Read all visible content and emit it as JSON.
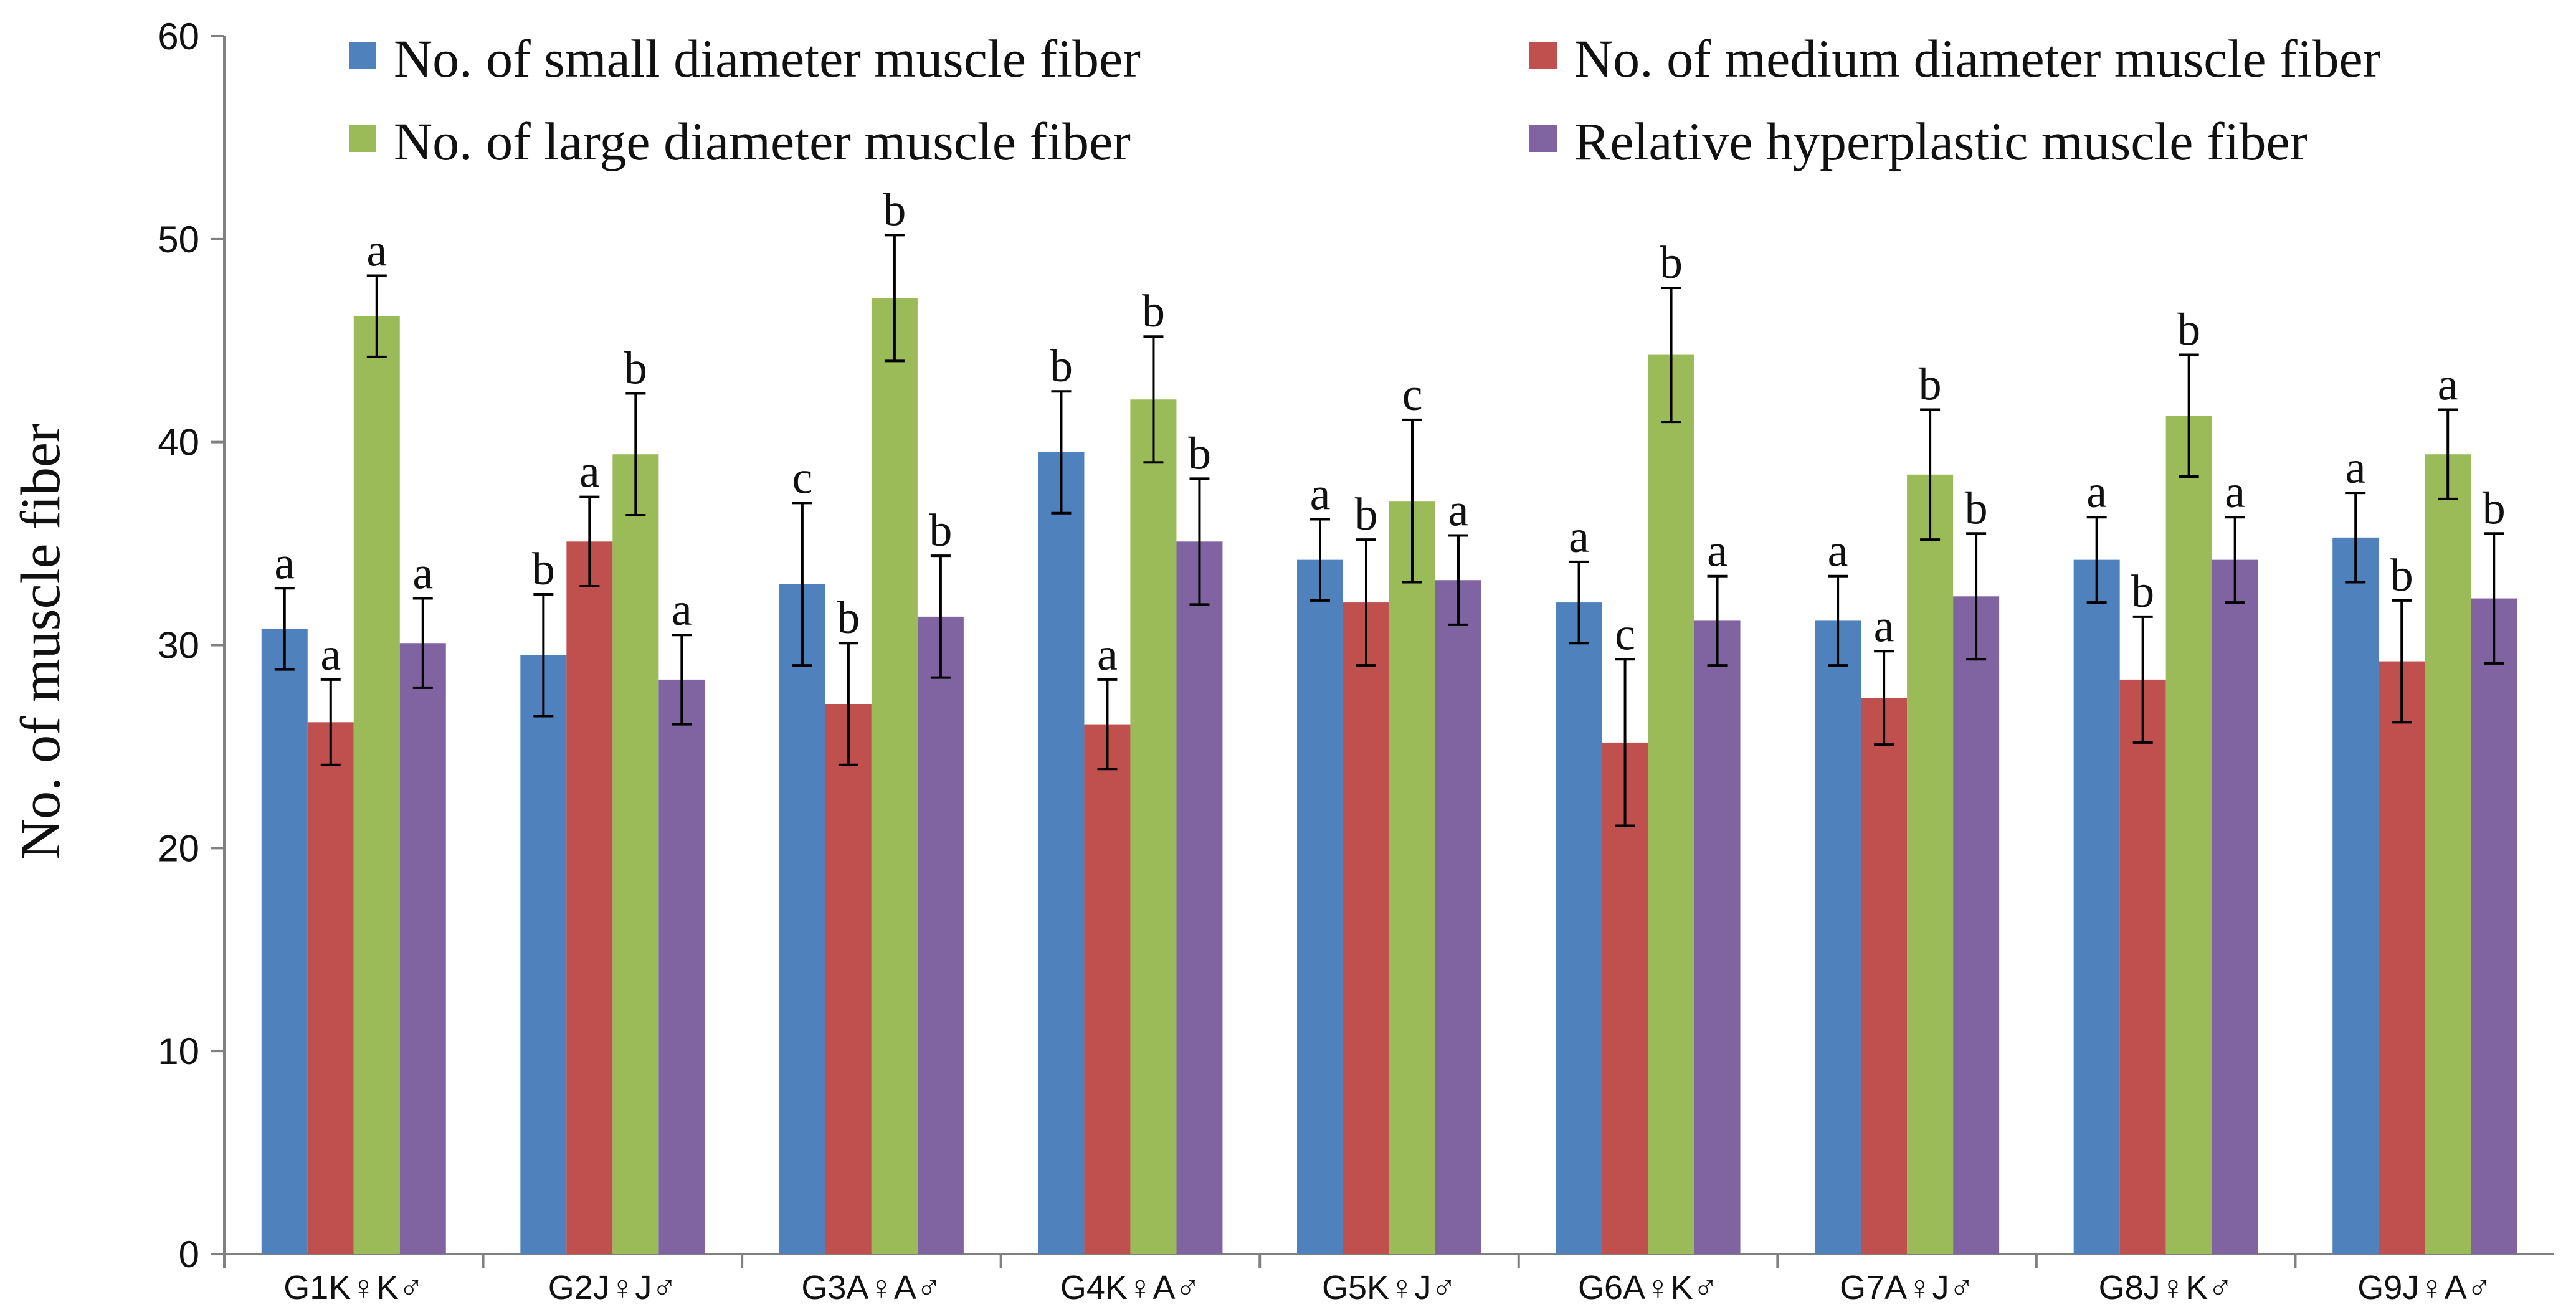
{
  "chart_data": {
    "type": "bar",
    "title": "",
    "xlabel": "",
    "ylabel": "No. of muscle fiber",
    "ylim": [
      0,
      60
    ],
    "yticks": [
      0,
      10,
      20,
      30,
      40,
      50,
      60
    ],
    "grid": false,
    "legend_position": "top",
    "categories": [
      "G1K♀K♂",
      "G2J♀J♂",
      "G3A♀A♂",
      "G4K♀A♂",
      "G5K♀J♂",
      "G6A♀K♂",
      "G7A♀J♂",
      "G8J♀K♂",
      "G9J♀A♂"
    ],
    "series": [
      {
        "name": "No. of small diameter muscle fiber",
        "color": "#4F81BD",
        "values": [
          30.8,
          29.5,
          33.0,
          39.5,
          34.2,
          32.1,
          31.2,
          34.2,
          35.3
        ],
        "errors": [
          2.0,
          3.0,
          4.0,
          3.0,
          2.0,
          2.0,
          2.2,
          2.1,
          2.2
        ],
        "labels": [
          "a",
          "b",
          "c",
          "b",
          "a",
          "a",
          "a",
          "a",
          "a"
        ]
      },
      {
        "name": "No. of medium diameter muscle fiber",
        "color": "#C0504D",
        "values": [
          26.2,
          35.1,
          27.1,
          26.1,
          32.1,
          25.2,
          27.4,
          28.3,
          29.2
        ],
        "errors": [
          2.1,
          2.2,
          3.0,
          2.2,
          3.1,
          4.1,
          2.3,
          3.1,
          3.0
        ],
        "labels": [
          "a",
          "a",
          "b",
          "a",
          "b",
          "c",
          "a",
          "b",
          "b"
        ]
      },
      {
        "name": "No. of large diameter muscle fiber",
        "color": "#9BBB59",
        "values": [
          46.2,
          39.4,
          47.1,
          42.1,
          37.1,
          44.3,
          38.4,
          41.3,
          39.4
        ],
        "errors": [
          2.0,
          3.0,
          3.1,
          3.1,
          4.0,
          3.3,
          3.2,
          3.0,
          2.2
        ],
        "labels": [
          "a",
          "b",
          "b",
          "b",
          "c",
          "b",
          "b",
          "b",
          "a"
        ]
      },
      {
        "name": "Relative hyperplastic muscle fiber",
        "color": "#8064A2",
        "values": [
          30.1,
          28.3,
          31.4,
          35.1,
          33.2,
          31.2,
          32.4,
          34.2,
          32.3
        ],
        "errors": [
          2.2,
          2.2,
          3.0,
          3.1,
          2.2,
          2.2,
          3.1,
          2.1,
          3.2
        ],
        "labels": [
          "a",
          "a",
          "b",
          "b",
          "a",
          "a",
          "b",
          "a",
          "b"
        ]
      }
    ]
  }
}
